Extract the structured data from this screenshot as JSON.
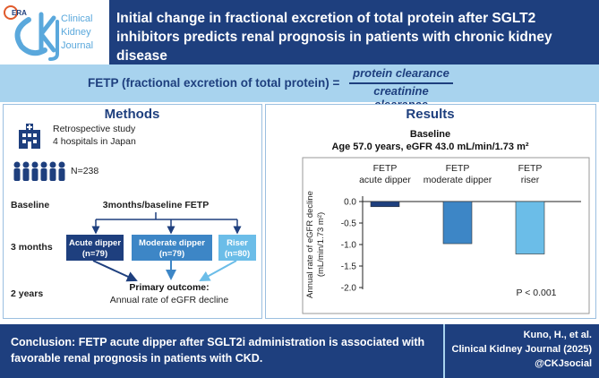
{
  "header": {
    "logo_era": "ERA",
    "logo_lines": [
      "Clinical",
      "Kidney",
      "Journal"
    ],
    "title": "Initial change in fractional excretion of total protein after SGLT2 inhibitors predicts renal prognosis in patients with chronic kidney disease"
  },
  "formula": {
    "label": "FETP (fractional excretion of total protein) =",
    "numerator": "protein clearance",
    "denominator": "creatinine clearance"
  },
  "methods": {
    "title": "Methods",
    "study_line1": "Retrospective study",
    "study_line2": "4 hospitals in Japan",
    "n": "N=238",
    "row_baseline": "Baseline",
    "row_3months": "3 months",
    "row_2years": "2 years",
    "baseline_measure": "3months/baseline FETP",
    "groups": [
      {
        "name": "Acute dipper",
        "n": "(n=79)",
        "color": "#1e3f7e"
      },
      {
        "name": "Moderate dipper",
        "n": "(n=79)",
        "color": "#3d86c6"
      },
      {
        "name": "Riser",
        "n": "(n=80)",
        "color": "#6bbde8"
      }
    ],
    "outcome_title": "Primary outcome:",
    "outcome_desc": "Annual rate of eGFR decline"
  },
  "results": {
    "title": "Results",
    "baseline_title": "Baseline",
    "baseline_desc": "Age 57.0 years, eGFR 43.0 mL/min/1.73 m²",
    "p_value": "P < 0.001"
  },
  "chart_data": {
    "type": "bar",
    "categories": [
      "FETP acute dipper",
      "FETP moderate dipper",
      "FETP riser"
    ],
    "category_lines": [
      [
        "FETP",
        "acute dipper"
      ],
      [
        "FETP",
        "moderate dipper"
      ],
      [
        "FETP",
        "riser"
      ]
    ],
    "values": [
      -0.12,
      -0.98,
      -1.22
    ],
    "colors": [
      "#1e3f7e",
      "#3d86c6",
      "#6bbde8"
    ],
    "ylabel_line1": "Annual rate of eGFR decline",
    "ylabel_line2": "(mL/min/1.73 m²)",
    "ylim": [
      -2.0,
      0.0
    ],
    "yticks": [
      0.0,
      -0.5,
      -1.0,
      -1.5,
      -2.0
    ],
    "ytick_labels": [
      "0.0",
      "-0.5",
      "-1.0",
      "-1.5",
      "-2.0"
    ],
    "annotation": "P < 0.001"
  },
  "footer": {
    "conclusion": "Conclusion: FETP acute dipper after SGLT2i administration is associated with favorable renal prognosis in patients with CKD.",
    "cite1": "Kuno, H., et al.",
    "cite2": "Clinical Kidney Journal (2025)",
    "cite3": "@CKJsocial"
  }
}
